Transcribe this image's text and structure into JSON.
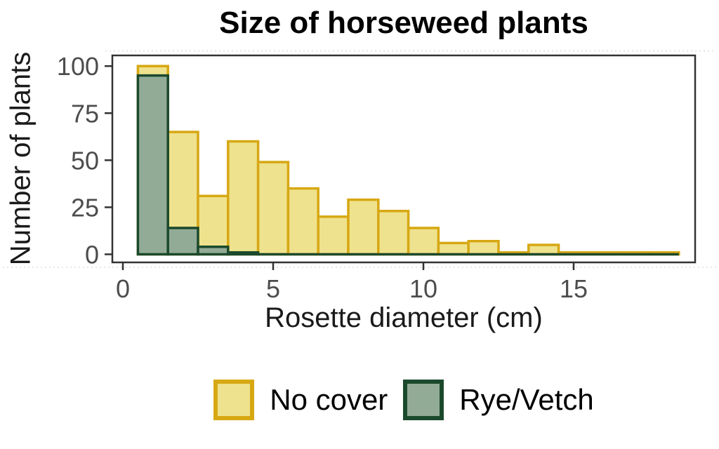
{
  "chart_data": {
    "type": "bar",
    "subtype": "histogram",
    "title": "Size of horseweed plants",
    "xlabel": "Rosette diameter (cm)",
    "ylabel": "Number of plants",
    "bin_start": 0.5,
    "bin_width": 1,
    "bin_centers": [
      1,
      2,
      3,
      4,
      5,
      6,
      7,
      8,
      9,
      10,
      11,
      12,
      13,
      14,
      15,
      16,
      17,
      18
    ],
    "series": [
      {
        "name": "No cover",
        "fill": "#EFE28E",
        "stroke": "#D7A813",
        "values": [
          100,
          65,
          31,
          60,
          49,
          35,
          20,
          29,
          23,
          14,
          6,
          7,
          1,
          5,
          1,
          1,
          1,
          1
        ]
      },
      {
        "name": "Rye/Vetch",
        "fill": "#92AB97",
        "stroke": "#1B492C",
        "values": [
          95,
          14,
          4,
          1,
          0,
          0,
          0,
          0,
          0,
          0,
          0,
          0,
          0,
          0,
          0,
          0,
          0,
          0
        ]
      }
    ],
    "xticks": [
      0,
      5,
      10,
      15
    ],
    "yticks": [
      0,
      25,
      50,
      75,
      100
    ],
    "xlim": [
      -0.4,
      19.05
    ],
    "ylim": [
      0,
      105
    ],
    "grid": false,
    "legend_position": "bottom"
  },
  "legend": {
    "items": [
      {
        "label": "No cover",
        "fill": "#EFE28E",
        "stroke": "#D7A813"
      },
      {
        "label": "Rye/Vetch",
        "fill": "#92AB97",
        "stroke": "#1B492C"
      }
    ]
  },
  "colors": {
    "axis": "#333333",
    "tick_label": "#4D4D4D",
    "axis_title": "#1A1A1A",
    "title": "#000000",
    "background": "#FFFFFF"
  }
}
